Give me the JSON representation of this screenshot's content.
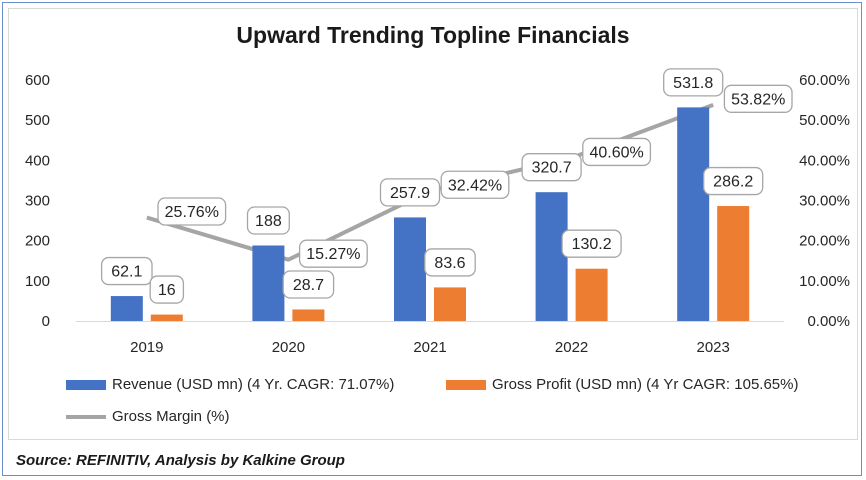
{
  "chart_data": {
    "type": "bar",
    "title": "Upward Trending Topline Financials",
    "categories": [
      "2019",
      "2020",
      "2021",
      "2022",
      "2023"
    ],
    "series": [
      {
        "name": "Revenue (USD mn) (4 Yr. CAGR: 71.07%)",
        "type": "bar",
        "axis": "left",
        "color": "#4472c4",
        "values": [
          62.1,
          188,
          257.9,
          320.7,
          531.8
        ],
        "labels": [
          "62.1",
          "188",
          "257.9",
          "320.7",
          "531.8"
        ]
      },
      {
        "name": "Gross Profit (USD mn) (4 Yr CAGR: 105.65%)",
        "type": "bar",
        "axis": "left",
        "color": "#ed7d31",
        "values": [
          16,
          28.7,
          83.6,
          130.2,
          286.2
        ],
        "labels": [
          "16",
          "28.7",
          "83.6",
          "130.2",
          "286.2"
        ]
      },
      {
        "name": "Gross Margin (%)",
        "type": "line",
        "axis": "right",
        "color": "#a5a5a5",
        "values": [
          25.76,
          15.27,
          32.42,
          40.6,
          53.82
        ],
        "labels": [
          "25.76%",
          "15.27%",
          "32.42%",
          "40.60%",
          "53.82%"
        ]
      }
    ],
    "ylim": [
      0,
      600
    ],
    "y_ticks": [
      "0",
      "100",
      "200",
      "300",
      "400",
      "500",
      "600"
    ],
    "y2lim": [
      0,
      60
    ],
    "y2_ticks": [
      "0.00%",
      "10.00%",
      "20.00%",
      "30.00%",
      "40.00%",
      "50.00%",
      "60.00%"
    ],
    "grid": false,
    "legend_position": "bottom"
  },
  "source": "Source: REFINITIV, Analysis by Kalkine Group"
}
